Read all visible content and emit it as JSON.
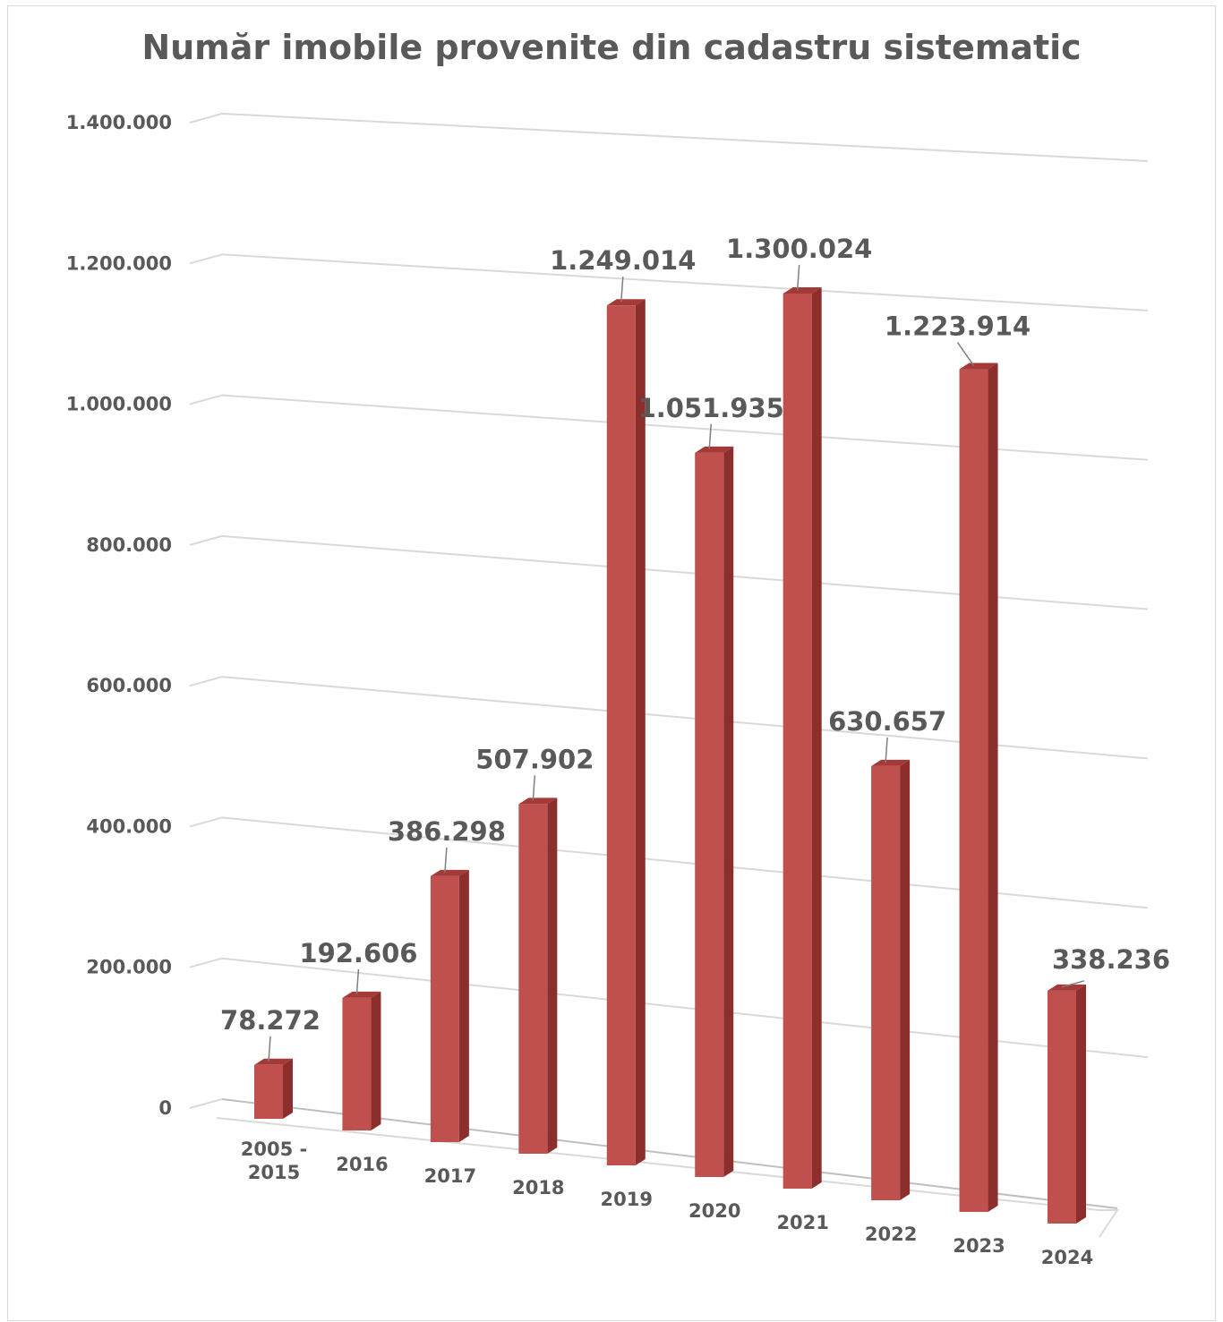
{
  "chart_data": {
    "type": "bar",
    "title": "Număr imobile provenite din cadastru sistematic",
    "categories": [
      [
        "2005 -",
        "2015"
      ],
      [
        "2016"
      ],
      [
        "2017"
      ],
      [
        "2018"
      ],
      [
        "2019"
      ],
      [
        "2020"
      ],
      [
        "2021"
      ],
      [
        "2022"
      ],
      [
        "2023"
      ],
      [
        "2024"
      ]
    ],
    "values": [
      78272,
      192606,
      386298,
      507902,
      1249014,
      1051935,
      1300024,
      630657,
      1223914,
      338236
    ],
    "data_labels": [
      "78.272",
      "192.606",
      "386.298",
      "507.902",
      "1.249.014",
      "1.051.935",
      "1.300.024",
      "630.657",
      "1.223.914",
      "338.236"
    ],
    "ylim": [
      0,
      1400000
    ],
    "yticks": [
      0,
      200000,
      400000,
      600000,
      800000,
      1000000,
      1200000,
      1400000
    ],
    "ytick_labels": [
      "0",
      "200.000",
      "400.000",
      "600.000",
      "800.000",
      "1.000.000",
      "1.200.000",
      "1.400.000"
    ],
    "grid": true,
    "legend": "none",
    "style": "3d-column",
    "colors": {
      "bar_front": "#c0504d",
      "bar_side": "#8b2e2c",
      "bar_top": "#a33a37",
      "gridline": "#d9d9d9",
      "text": "#595959"
    }
  }
}
